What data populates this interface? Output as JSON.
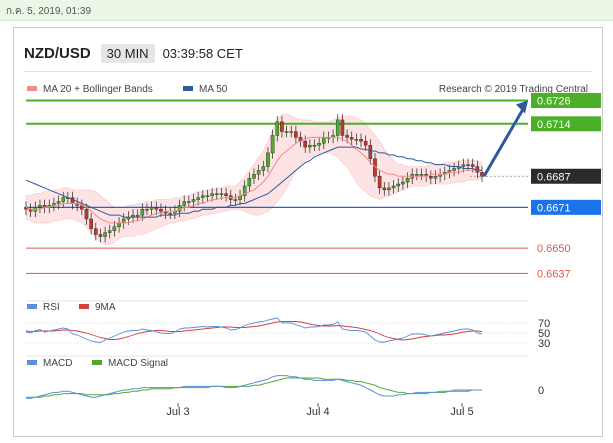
{
  "topbar": {
    "timestamp": "ก.ค. 5, 2019, 01:39"
  },
  "header": {
    "pair": "NZD/USD",
    "timeframe": "30 MIN",
    "time": "03:39:58 CET"
  },
  "colors": {
    "ma20": "#f28b8b",
    "ma50": "#2e5a9c",
    "bollinger_fill": "#fde3e3",
    "resistance": "#4caf2a",
    "support": "#2a5fe0",
    "support_label_bg": "#1a73e8",
    "current_label_bg": "#2b2b2b",
    "minor_level": "#e05555",
    "candle_up": "#4caf2a",
    "candle_down": "#c0392b",
    "arrow": "#2e5a9c",
    "rsi": "#5b8fd6",
    "rsi_9ma": "#d43f3f",
    "macd": "#5b8fd6",
    "macd_signal": "#55a630"
  },
  "chart_data": [
    {
      "type": "candlestick",
      "title": "NZD/USD",
      "timeframe": "30 MIN",
      "credit": "Research © 2019 Trading Central",
      "legend": [
        {
          "name": "MA 20 + Bollinger Bands",
          "color": "#f28b8b"
        },
        {
          "name": "MA 50",
          "color": "#2e5a9c"
        }
      ],
      "x_ticks": [
        "Jul 3",
        "Jul 4",
        "Jul 5"
      ],
      "ylim": [
        0.663,
        0.6735
      ],
      "levels": [
        {
          "value": 0.6726,
          "label": "0.6726",
          "kind": "resistance"
        },
        {
          "value": 0.6714,
          "label": "0.6714",
          "kind": "resistance"
        },
        {
          "value": 0.6687,
          "label": "0.6687",
          "kind": "current"
        },
        {
          "value": 0.6671,
          "label": "0.6671",
          "kind": "support"
        },
        {
          "value": 0.665,
          "label": "0.6650",
          "kind": "minor"
        },
        {
          "value": 0.6637,
          "label": "0.6637",
          "kind": "minor"
        }
      ],
      "close": [
        0.667,
        0.6669,
        0.6671,
        0.6672,
        0.6671,
        0.6672,
        0.6673,
        0.6674,
        0.6676,
        0.6676,
        0.6673,
        0.6672,
        0.667,
        0.6665,
        0.666,
        0.6657,
        0.6656,
        0.6658,
        0.6659,
        0.6661,
        0.6663,
        0.6665,
        0.6666,
        0.6667,
        0.6667,
        0.667,
        0.667,
        0.6671,
        0.667,
        0.6669,
        0.6668,
        0.6668,
        0.6669,
        0.6672,
        0.6674,
        0.6674,
        0.6675,
        0.6676,
        0.6677,
        0.6677,
        0.6678,
        0.6678,
        0.6678,
        0.6677,
        0.6675,
        0.6675,
        0.6677,
        0.6682,
        0.6686,
        0.6688,
        0.669,
        0.6692,
        0.6699,
        0.6708,
        0.6715,
        0.671,
        0.671,
        0.671,
        0.6707,
        0.6705,
        0.6702,
        0.6703,
        0.6703,
        0.6704,
        0.6707,
        0.6707,
        0.6708,
        0.6716,
        0.6708,
        0.6707,
        0.6706,
        0.6706,
        0.6705,
        0.6703,
        0.6696,
        0.6687,
        0.6681,
        0.668,
        0.6681,
        0.6682,
        0.6683,
        0.6684,
        0.6686,
        0.6688,
        0.6688,
        0.6688,
        0.6687,
        0.6686,
        0.6687,
        0.6688,
        0.6689,
        0.669,
        0.6691,
        0.6692,
        0.6693,
        0.6693,
        0.6692,
        0.6689,
        0.6687
      ],
      "ma20": [
        0.6671,
        0.667,
        0.667,
        0.667,
        0.6671,
        0.6671,
        0.6672,
        0.6672,
        0.6673,
        0.6673,
        0.6673,
        0.6673,
        0.6672,
        0.6671,
        0.6669,
        0.6667,
        0.6665,
        0.6664,
        0.6663,
        0.6663,
        0.6663,
        0.6663,
        0.6663,
        0.6664,
        0.6664,
        0.6665,
        0.6666,
        0.6667,
        0.6668,
        0.6668,
        0.6669,
        0.6669,
        0.6669,
        0.667,
        0.6671,
        0.6671,
        0.6672,
        0.6673,
        0.6673,
        0.6674,
        0.6675,
        0.6675,
        0.6676,
        0.6676,
        0.6676,
        0.6676,
        0.6677,
        0.6678,
        0.6679,
        0.668,
        0.6682,
        0.6684,
        0.6687,
        0.6691,
        0.6695,
        0.6698,
        0.67,
        0.6702,
        0.6704,
        0.6705,
        0.6706,
        0.6707,
        0.6707,
        0.6707,
        0.6707,
        0.6707,
        0.6707,
        0.6707,
        0.6706,
        0.6705,
        0.6703,
        0.6701,
        0.6699,
        0.6697,
        0.6694,
        0.6692,
        0.669,
        0.6689,
        0.6688,
        0.6688,
        0.6687,
        0.6687,
        0.6687,
        0.6687,
        0.6687,
        0.6687,
        0.6687,
        0.6688,
        0.6688,
        0.6688,
        0.6688,
        0.6689,
        0.6689,
        0.6689,
        0.669,
        0.669,
        0.669,
        0.669,
        0.669
      ],
      "ma50": [
        0.6685,
        0.6684,
        0.6683,
        0.6682,
        0.6681,
        0.668,
        0.6679,
        0.6678,
        0.6677,
        0.6676,
        0.6675,
        0.6674,
        0.6673,
        0.6672,
        0.6671,
        0.667,
        0.6669,
        0.6668,
        0.6667,
        0.6667,
        0.6667,
        0.6666,
        0.6666,
        0.6666,
        0.6666,
        0.6666,
        0.6666,
        0.6666,
        0.6666,
        0.6667,
        0.6667,
        0.6667,
        0.6667,
        0.6668,
        0.6668,
        0.6668,
        0.6669,
        0.6669,
        0.667,
        0.667,
        0.667,
        0.6671,
        0.6671,
        0.6671,
        0.6672,
        0.6672,
        0.6673,
        0.6673,
        0.6674,
        0.6675,
        0.6676,
        0.6677,
        0.6678,
        0.668,
        0.6682,
        0.6684,
        0.6686,
        0.6688,
        0.669,
        0.6692,
        0.6694,
        0.6695,
        0.6697,
        0.6698,
        0.6699,
        0.67,
        0.6701,
        0.6702,
        0.6702,
        0.6702,
        0.6702,
        0.6702,
        0.6701,
        0.6701,
        0.67,
        0.67,
        0.6699,
        0.6699,
        0.6698,
        0.6698,
        0.6697,
        0.6697,
        0.6696,
        0.6696,
        0.6695,
        0.6695,
        0.6694,
        0.6694,
        0.6693,
        0.6693,
        0.6693,
        0.6692,
        0.6692,
        0.6692,
        0.6691,
        0.6691,
        0.6691,
        0.669,
        0.669
      ],
      "bb_upper": [
        0.6677,
        0.6677,
        0.6678,
        0.6678,
        0.6679,
        0.6679,
        0.668,
        0.668,
        0.6681,
        0.6681,
        0.668,
        0.668,
        0.668,
        0.668,
        0.668,
        0.6679,
        0.6677,
        0.6675,
        0.6673,
        0.6671,
        0.6671,
        0.6671,
        0.6672,
        0.6672,
        0.6673,
        0.6673,
        0.6674,
        0.6674,
        0.6675,
        0.6675,
        0.6675,
        0.6675,
        0.6676,
        0.6676,
        0.6677,
        0.6677,
        0.6678,
        0.6679,
        0.6679,
        0.668,
        0.668,
        0.6681,
        0.6681,
        0.6682,
        0.6682,
        0.6682,
        0.6684,
        0.6687,
        0.669,
        0.6693,
        0.6697,
        0.67,
        0.6705,
        0.6711,
        0.6716,
        0.6719,
        0.6719,
        0.6718,
        0.6717,
        0.6716,
        0.6716,
        0.6716,
        0.6715,
        0.6715,
        0.6715,
        0.6715,
        0.6716,
        0.6717,
        0.6718,
        0.6718,
        0.6718,
        0.6717,
        0.6716,
        0.6714,
        0.6711,
        0.6708,
        0.6705,
        0.6701,
        0.6698,
        0.6695,
        0.6693,
        0.6693,
        0.6692,
        0.6692,
        0.6692,
        0.6692,
        0.6692,
        0.6693,
        0.6693,
        0.6693,
        0.6694,
        0.6694,
        0.6694,
        0.6695,
        0.6695,
        0.6695,
        0.6695,
        0.6695,
        0.6694
      ],
      "bb_lower": [
        0.6665,
        0.6664,
        0.6663,
        0.6663,
        0.6663,
        0.6663,
        0.6664,
        0.6664,
        0.6665,
        0.6665,
        0.6665,
        0.6664,
        0.6663,
        0.6661,
        0.6658,
        0.6655,
        0.6653,
        0.6652,
        0.6652,
        0.6653,
        0.6655,
        0.6656,
        0.6656,
        0.6656,
        0.6657,
        0.6657,
        0.6658,
        0.6659,
        0.666,
        0.6661,
        0.6662,
        0.6663,
        0.6663,
        0.6664,
        0.6664,
        0.6665,
        0.6665,
        0.6666,
        0.6667,
        0.6667,
        0.6668,
        0.6668,
        0.6669,
        0.6669,
        0.667,
        0.667,
        0.667,
        0.6669,
        0.6668,
        0.6667,
        0.6667,
        0.6668,
        0.6669,
        0.6671,
        0.6674,
        0.6677,
        0.6681,
        0.6685,
        0.669,
        0.6693,
        0.6695,
        0.6697,
        0.6698,
        0.6699,
        0.6699,
        0.6699,
        0.6698,
        0.6697,
        0.6694,
        0.6692,
        0.6688,
        0.6684,
        0.6681,
        0.6679,
        0.6677,
        0.6676,
        0.6675,
        0.6676,
        0.6677,
        0.6678,
        0.6679,
        0.668,
        0.6681,
        0.6682,
        0.6682,
        0.6682,
        0.6682,
        0.6683,
        0.6683,
        0.6683,
        0.6683,
        0.6683,
        0.6684,
        0.6684,
        0.6684,
        0.6685,
        0.6685,
        0.6685,
        0.6686
      ],
      "projection": {
        "from_value": 0.6687,
        "to_value": 0.6726
      }
    },
    {
      "type": "line",
      "title": "RSI",
      "legend": [
        {
          "name": "RSI",
          "color": "#5b8fd6"
        },
        {
          "name": "9MA",
          "color": "#d43f3f"
        }
      ],
      "y_ticks": [
        70,
        50,
        30
      ],
      "ylim": [
        20,
        80
      ],
      "rsi": [
        52,
        50,
        55,
        57,
        52,
        54,
        56,
        58,
        60,
        58,
        48,
        46,
        42,
        38,
        34,
        32,
        31,
        36,
        40,
        44,
        48,
        52,
        54,
        55,
        55,
        58,
        56,
        55,
        52,
        50,
        49,
        49,
        52,
        58,
        60,
        60,
        61,
        62,
        63,
        62,
        63,
        63,
        62,
        60,
        56,
        57,
        60,
        65,
        68,
        70,
        72,
        73,
        76,
        78,
        80,
        70,
        70,
        70,
        66,
        64,
        60,
        62,
        62,
        63,
        66,
        66,
        67,
        72,
        58,
        56,
        55,
        55,
        54,
        52,
        44,
        36,
        32,
        32,
        34,
        36,
        38,
        40,
        44,
        48,
        48,
        48,
        46,
        44,
        46,
        48,
        50,
        52,
        54,
        56,
        58,
        58,
        56,
        50,
        48
      ],
      "ma9": [
        54,
        53,
        53,
        54,
        54,
        54,
        54,
        55,
        56,
        56,
        55,
        54,
        52,
        50,
        47,
        44,
        41,
        39,
        37,
        37,
        38,
        40,
        43,
        46,
        49,
        51,
        53,
        54,
        55,
        55,
        54,
        53,
        53,
        53,
        54,
        55,
        56,
        57,
        58,
        59,
        60,
        61,
        62,
        62,
        62,
        61,
        61,
        61,
        62,
        63,
        64,
        66,
        68,
        70,
        72,
        73,
        73,
        73,
        73,
        72,
        70,
        68,
        66,
        65,
        64,
        64,
        64,
        65,
        64,
        63,
        62,
        61,
        59,
        57,
        55,
        52,
        48,
        44,
        41,
        39,
        37,
        36,
        37,
        38,
        40,
        42,
        43,
        44,
        45,
        46,
        46,
        47,
        48,
        50,
        52,
        53,
        54,
        54,
        53
      ]
    },
    {
      "type": "line",
      "title": "MACD",
      "legend": [
        {
          "name": "MACD",
          "color": "#5b8fd6"
        },
        {
          "name": "MACD Signal",
          "color": "#55a630"
        }
      ],
      "y_ticks": [
        0
      ],
      "ylim": [
        -0.001,
        0.0015
      ],
      "macd": [
        -0.0007,
        -0.0007,
        -0.0006,
        -0.0005,
        -0.0004,
        -0.0003,
        -0.0002,
        -0.0002,
        -0.0001,
        -0.0001,
        -0.0002,
        -0.0003,
        -0.0004,
        -0.0005,
        -0.0006,
        -0.0006,
        -0.0005,
        -0.0004,
        -0.0003,
        -0.0002,
        -0.0001,
        0.0,
        0.0,
        0.0001,
        0.0001,
        0.0002,
        0.0002,
        0.0002,
        0.0002,
        0.0002,
        0.0002,
        0.0002,
        0.0002,
        0.0002,
        0.0003,
        0.0003,
        0.0003,
        0.0003,
        0.0003,
        0.0003,
        0.0003,
        0.0003,
        0.0003,
        0.0002,
        0.0002,
        0.0002,
        0.0003,
        0.0004,
        0.0005,
        0.0006,
        0.0007,
        0.0008,
        0.0009,
        0.0011,
        0.0012,
        0.0012,
        0.0012,
        0.0011,
        0.0011,
        0.001,
        0.0009,
        0.0009,
        0.0008,
        0.0008,
        0.0008,
        0.0008,
        0.0008,
        0.0009,
        0.0008,
        0.0007,
        0.0006,
        0.0005,
        0.0004,
        0.0002,
        0.0,
        -0.0002,
        -0.0004,
        -0.0005,
        -0.0005,
        -0.0005,
        -0.0004,
        -0.0004,
        -0.0003,
        -0.0003,
        -0.0002,
        -0.0002,
        -0.0002,
        -0.0002,
        -0.0002,
        -0.0001,
        -0.0001,
        -0.0001,
        0.0,
        0.0,
        0.0,
        0.0,
        0.0,
        0.0,
        0.0
      ],
      "signal": [
        -0.0006,
        -0.0006,
        -0.0006,
        -0.0006,
        -0.0005,
        -0.0005,
        -0.0004,
        -0.0004,
        -0.0003,
        -0.0003,
        -0.0003,
        -0.0003,
        -0.0003,
        -0.0004,
        -0.0004,
        -0.0004,
        -0.0004,
        -0.0004,
        -0.0004,
        -0.0003,
        -0.0003,
        -0.0002,
        -0.0002,
        -0.0001,
        -0.0001,
        0.0,
        0.0,
        0.0001,
        0.0001,
        0.0001,
        0.0001,
        0.0001,
        0.0002,
        0.0002,
        0.0002,
        0.0002,
        0.0002,
        0.0002,
        0.0002,
        0.0002,
        0.0003,
        0.0003,
        0.0003,
        0.0003,
        0.0003,
        0.0003,
        0.0003,
        0.0003,
        0.0003,
        0.0004,
        0.0004,
        0.0005,
        0.0006,
        0.0007,
        0.0008,
        0.0009,
        0.001,
        0.001,
        0.001,
        0.001,
        0.001,
        0.001,
        0.001,
        0.001,
        0.0009,
        0.0009,
        0.0009,
        0.0009,
        0.0009,
        0.0008,
        0.0008,
        0.0007,
        0.0007,
        0.0006,
        0.0005,
        0.0004,
        0.0002,
        0.0001,
        0.0,
        -0.0001,
        -0.0002,
        -0.0002,
        -0.0003,
        -0.0003,
        -0.0003,
        -0.0003,
        -0.0003,
        -0.0002,
        -0.0002,
        -0.0002,
        -0.0002,
        -0.0001,
        -0.0001,
        -0.0001,
        -0.0001,
        -0.0001,
        0.0,
        0.0,
        0.0
      ]
    }
  ]
}
